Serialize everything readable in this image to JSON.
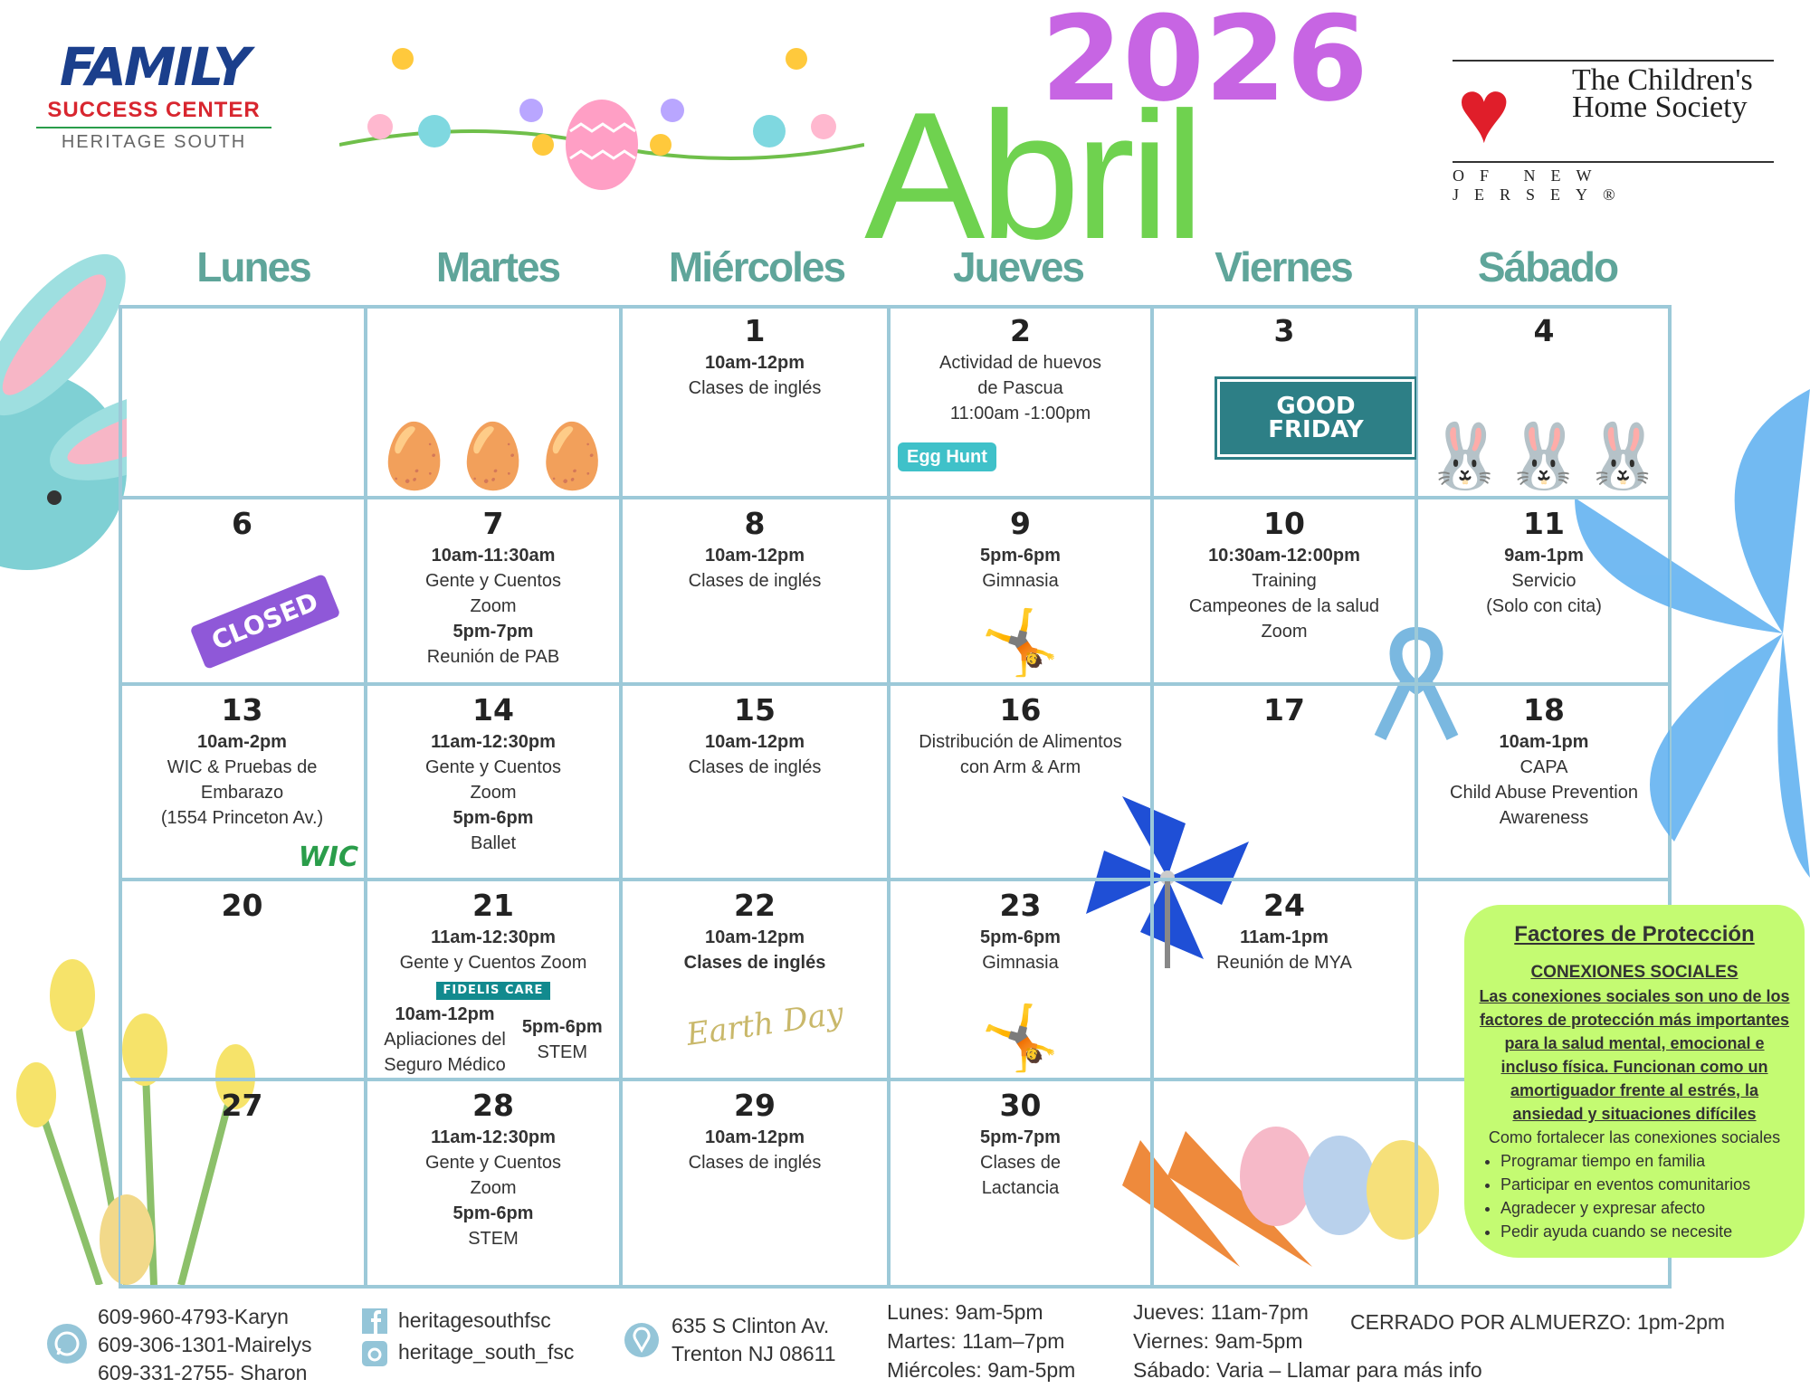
{
  "header": {
    "year": "2026",
    "month": "Abril",
    "logo_left": {
      "line1": "FAMILY",
      "line2": "SUCCESS CENTER",
      "line3": "HERITAGE SOUTH"
    },
    "logo_right": {
      "name": "The Children's Home Society",
      "sub": "OF NEW JERSEY®"
    }
  },
  "colors": {
    "year": "#c765e3",
    "month": "#6fd24f",
    "day_headers": "#5fa59a",
    "grid": "#9cc9d8",
    "box": "#c4fb72"
  },
  "day_headers": [
    "Lunes",
    "Martes",
    "Miércoles",
    "Jueves",
    "Viernes",
    "Sábado"
  ],
  "cells": [
    {
      "day": "",
      "lines": []
    },
    {
      "day": "",
      "lines": [],
      "decor": "easter-egg-nest"
    },
    {
      "day": "1",
      "lines": [
        {
          "t": "10am-12pm",
          "b": true
        },
        {
          "t": "Clases de inglés"
        }
      ]
    },
    {
      "day": "2",
      "lines": [
        {
          "t": "Actividad de huevos"
        },
        {
          "t": "de Pascua"
        },
        {
          "t": "11:00am -1:00pm"
        }
      ],
      "badge": "Egg Hunt"
    },
    {
      "day": "3",
      "lines": [],
      "badge": "GOOD FRIDAY"
    },
    {
      "day": "4",
      "lines": [],
      "decor": "bunnies"
    },
    {
      "day": "6",
      "lines": [],
      "badge": "CLOSED"
    },
    {
      "day": "7",
      "lines": [
        {
          "t": "10am-11:30am",
          "b": true
        },
        {
          "t": "Gente y Cuentos"
        },
        {
          "t": "Zoom"
        },
        {
          "t": "5pm-7pm",
          "b": true
        },
        {
          "t": "Reunión de PAB"
        }
      ]
    },
    {
      "day": "8",
      "lines": [
        {
          "t": "10am-12pm",
          "b": true
        },
        {
          "t": "Clases de inglés"
        }
      ]
    },
    {
      "day": "9",
      "lines": [
        {
          "t": "5pm-6pm",
          "b": true
        },
        {
          "t": "Gimnasia"
        }
      ],
      "decor": "gymnast"
    },
    {
      "day": "10",
      "lines": [
        {
          "t": "10:30am-12:00pm",
          "b": true
        },
        {
          "t": "Training"
        },
        {
          "t": "Campeones de la salud"
        },
        {
          "t": "Zoom"
        }
      ]
    },
    {
      "day": "11",
      "lines": [
        {
          "t": "9am-1pm",
          "b": true
        },
        {
          "t": "Servicio"
        },
        {
          "t": "(Solo con cita)"
        }
      ]
    },
    {
      "day": "13",
      "lines": [
        {
          "t": "10am-2pm",
          "b": true
        },
        {
          "t": "WIC & Pruebas de"
        },
        {
          "t": "Embarazo"
        },
        {
          "t": "(1554 Princeton Av.)"
        }
      ],
      "badge": "WIC"
    },
    {
      "day": "14",
      "lines": [
        {
          "t": "11am-12:30pm",
          "b": true
        },
        {
          "t": "Gente y Cuentos"
        },
        {
          "t": "Zoom"
        },
        {
          "t": "5pm-6pm",
          "b": true
        },
        {
          "t": "Ballet"
        }
      ]
    },
    {
      "day": "15",
      "lines": [
        {
          "t": "10am-12pm",
          "b": true
        },
        {
          "t": "Clases de inglés"
        }
      ]
    },
    {
      "day": "16",
      "lines": [
        {
          "t": "Distribución de Alimentos"
        },
        {
          "t": "con Arm & Arm"
        }
      ]
    },
    {
      "day": "17",
      "lines": []
    },
    {
      "day": "18",
      "lines": [
        {
          "t": "10am-1pm",
          "b": true
        },
        {
          "t": "CAPA"
        },
        {
          "t": "Child Abuse Prevention"
        },
        {
          "t": "Awareness"
        }
      ]
    },
    {
      "day": "20",
      "lines": []
    },
    {
      "day": "21",
      "lines": [
        {
          "t": "11am-12:30pm",
          "b": true
        },
        {
          "t": "Gente y Cuentos Zoom"
        },
        {
          "t": "10am-12pm",
          "b": true
        },
        {
          "t": "Apliaciones del"
        },
        {
          "t": "Seguro Médico"
        },
        {
          "t": "5pm-6pm",
          "b": true
        },
        {
          "t": "STEM"
        }
      ],
      "badge": "FIDELIS CARE"
    },
    {
      "day": "22",
      "lines": [
        {
          "t": "10am-12pm",
          "b": true
        },
        {
          "t": "Clases de inglés",
          "b": true
        }
      ],
      "badge": "Earth Day"
    },
    {
      "day": "23",
      "lines": [
        {
          "t": "5pm-6pm",
          "b": true
        },
        {
          "t": "Gimnasia"
        }
      ],
      "decor": "gymnast"
    },
    {
      "day": "24",
      "lines": [
        {
          "t": "11am-1pm",
          "b": true
        },
        {
          "t": "Reunión de MYA"
        }
      ]
    },
    {
      "day": "",
      "lines": []
    },
    {
      "day": "27",
      "lines": []
    },
    {
      "day": "28",
      "lines": [
        {
          "t": "11am-12:30pm",
          "b": true
        },
        {
          "t": "Gente y Cuentos"
        },
        {
          "t": "Zoom"
        },
        {
          "t": "5pm-6pm",
          "b": true
        },
        {
          "t": "STEM"
        }
      ]
    },
    {
      "day": "29",
      "lines": [
        {
          "t": "10am-12pm",
          "b": true
        },
        {
          "t": "Clases de inglés"
        }
      ]
    },
    {
      "day": "30",
      "lines": [
        {
          "t": "5pm-7pm",
          "b": true
        },
        {
          "t": "Clases de"
        },
        {
          "t": "Lactancia"
        }
      ]
    },
    {
      "day": "",
      "lines": []
    },
    {
      "day": "",
      "lines": []
    }
  ],
  "info_box": {
    "title": "Factores de Protección",
    "subtitle": "CONEXIONES SOCIALES",
    "intro": "Las conexiones sociales son uno de los factores de protección más importantes para la salud mental, emocional e incluso física. Funcionan como un amortiguador frente al estrés, la ansiedad y situaciones difíciles",
    "how": "Como fortalecer las conexiones sociales",
    "tips": [
      "Programar tiempo en familia",
      "Participar en eventos comunitarios",
      "Agradecer y expresar afecto",
      "Pedir ayuda cuando se necesite"
    ]
  },
  "footer": {
    "phones": [
      "609-960-4793-Karyn",
      "609-306-1301-Mairelys",
      "609-331-2755- Sharon"
    ],
    "facebook": "heritagesouthfsc",
    "instagram": "heritage_south_fsc",
    "address": [
      "635 S Clinton Av.",
      "Trenton NJ 08611"
    ],
    "hours_a": [
      "Lunes: 9am-5pm",
      "Martes: 11am–7pm",
      "Miércoles: 9am-5pm"
    ],
    "hours_b": [
      "Jueves: 11am-7pm",
      "Viernes: 9am-5pm",
      "Sábado: Varia – Llamar para más info"
    ],
    "lunch": "CERRADO POR ALMUERZO: 1pm-2pm",
    "icons": [
      "whatsapp-icon",
      "facebook-icon",
      "instagram-icon",
      "location-pin-icon"
    ]
  }
}
